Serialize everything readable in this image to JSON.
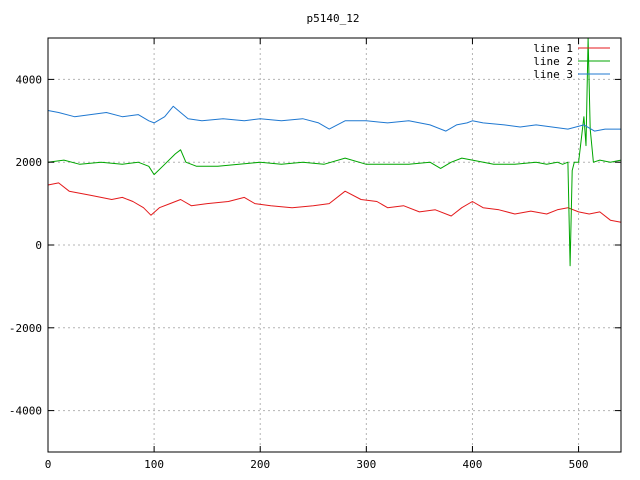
{
  "chart_data": {
    "type": "line",
    "title": "p5140_12",
    "xlabel": "",
    "ylabel": "",
    "xlim": [
      0,
      540
    ],
    "ylim": [
      -5000,
      5000
    ],
    "x_ticks": [
      0,
      100,
      200,
      300,
      400,
      500
    ],
    "y_ticks": [
      -4000,
      -2000,
      0,
      2000,
      4000
    ],
    "grid": true,
    "legend_position": "top-right",
    "series": [
      {
        "name": "line 1",
        "color": "#e41a1c",
        "x": [
          0,
          10,
          20,
          30,
          40,
          50,
          60,
          70,
          80,
          90,
          97,
          105,
          115,
          125,
          135,
          150,
          170,
          185,
          195,
          210,
          230,
          250,
          265,
          280,
          295,
          310,
          320,
          335,
          350,
          365,
          380,
          390,
          400,
          410,
          425,
          440,
          455,
          470,
          480,
          490,
          500,
          510,
          520,
          530,
          540
        ],
        "y": [
          1450,
          1500,
          1300,
          1250,
          1200,
          1150,
          1100,
          1150,
          1050,
          900,
          720,
          900,
          1000,
          1100,
          950,
          1000,
          1050,
          1150,
          1000,
          950,
          900,
          950,
          1000,
          1300,
          1100,
          1050,
          900,
          950,
          800,
          850,
          700,
          900,
          1050,
          900,
          850,
          750,
          820,
          750,
          850,
          900,
          800,
          750,
          800,
          600,
          550
        ]
      },
      {
        "name": "line 2",
        "color": "#00a600",
        "x": [
          0,
          15,
          30,
          50,
          70,
          85,
          95,
          100,
          110,
          120,
          125,
          130,
          140,
          160,
          180,
          200,
          220,
          240,
          260,
          280,
          300,
          320,
          340,
          360,
          370,
          380,
          390,
          400,
          420,
          440,
          460,
          470,
          480,
          485,
          490,
          492,
          494,
          496,
          500,
          505,
          507,
          509,
          511,
          514,
          520,
          530,
          540
        ],
        "y": [
          2000,
          2050,
          1950,
          2000,
          1950,
          2000,
          1900,
          1700,
          1950,
          2200,
          2300,
          2000,
          1900,
          1900,
          1950,
          2000,
          1950,
          2000,
          1950,
          2100,
          1950,
          1950,
          1950,
          2000,
          1850,
          2000,
          2100,
          2050,
          1950,
          1950,
          2000,
          1950,
          2000,
          1950,
          2000,
          -500,
          1800,
          2000,
          2000,
          3100,
          2400,
          5000,
          2800,
          2000,
          2050,
          2000,
          2050
        ]
      },
      {
        "name": "line 3",
        "color": "#1f78d1",
        "x": [
          0,
          10,
          25,
          40,
          55,
          70,
          85,
          95,
          100,
          110,
          118,
          125,
          132,
          145,
          165,
          185,
          200,
          220,
          240,
          255,
          265,
          280,
          300,
          320,
          340,
          360,
          375,
          385,
          395,
          400,
          410,
          430,
          445,
          460,
          475,
          490,
          505,
          515,
          525,
          540
        ],
        "y": [
          3250,
          3200,
          3100,
          3150,
          3200,
          3100,
          3150,
          3000,
          2950,
          3100,
          3350,
          3200,
          3050,
          3000,
          3050,
          3000,
          3050,
          3000,
          3050,
          2950,
          2800,
          3000,
          3000,
          2950,
          3000,
          2900,
          2750,
          2900,
          2950,
          3000,
          2950,
          2900,
          2850,
          2900,
          2850,
          2800,
          2900,
          2750,
          2800,
          2800
        ]
      }
    ]
  }
}
